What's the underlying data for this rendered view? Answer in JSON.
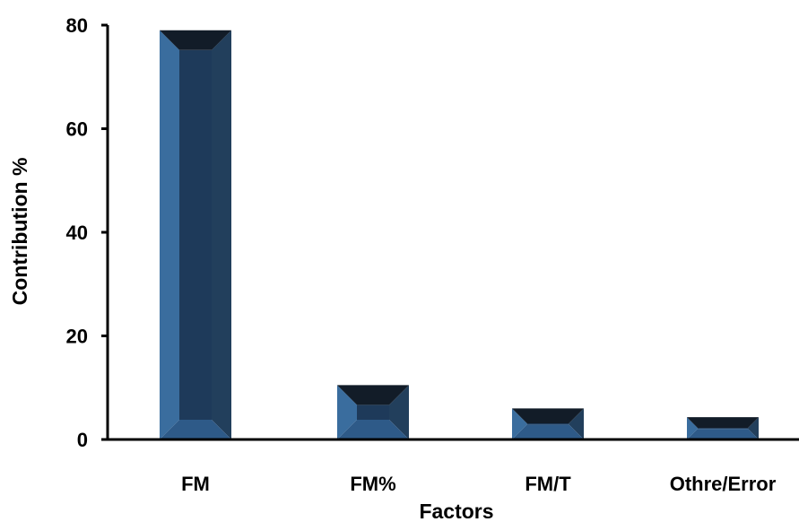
{
  "chart_data": {
    "type": "bar",
    "categories": [
      "FM",
      "FM%",
      "FM/T",
      "Othre/Error"
    ],
    "values": [
      79,
      10.5,
      6,
      4.3
    ],
    "xlabel": "Factors",
    "ylabel": "Contribution %",
    "ylim": [
      0,
      80
    ],
    "yticks": [
      0,
      20,
      40,
      60,
      80
    ],
    "grid": false,
    "legend": "none",
    "colors": {
      "bar_front": "#2E5A88",
      "bar_inner": "#1E3A5A",
      "bar_top": "#121C28",
      "bar_right": "#223F5C",
      "bar_left": "#3A6D9E",
      "axis": "#000000"
    }
  }
}
